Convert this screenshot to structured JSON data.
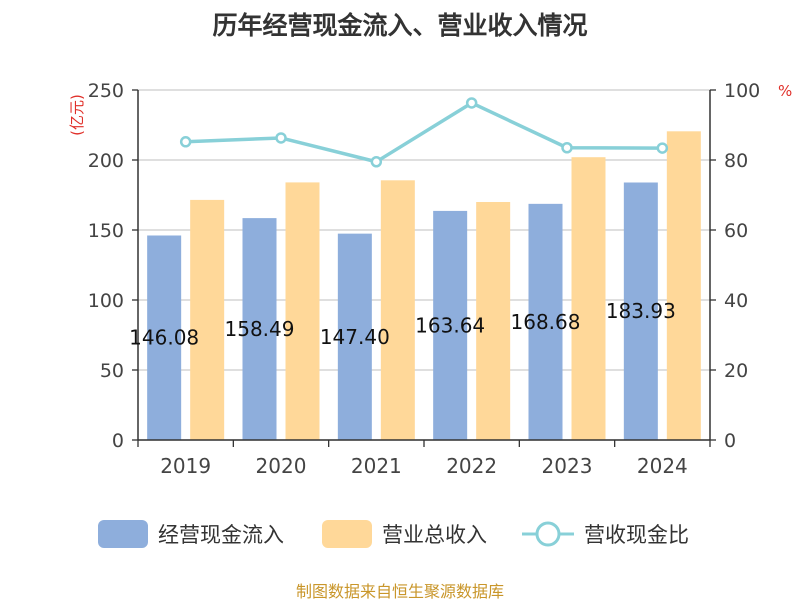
{
  "title": "历年经营现金流入、营业收入情况",
  "source": "制图数据来自恒生聚源数据库",
  "chart_data": {
    "type": "bar",
    "categories": [
      "2019",
      "2020",
      "2021",
      "2022",
      "2023",
      "2024"
    ],
    "left_unit": "(亿元)",
    "right_unit": "%",
    "ylim": [
      0,
      250
    ],
    "y_ticks": [
      0,
      50,
      100,
      150,
      200,
      250
    ],
    "y2lim": [
      0,
      100
    ],
    "y2_ticks": [
      0,
      20,
      40,
      60,
      80,
      100
    ],
    "grid": true,
    "legend_position": "bottom",
    "series": [
      {
        "name": "经营现金流入",
        "type": "bar",
        "color": "#8eaedc",
        "axis": "left",
        "values": [
          146.08,
          158.49,
          147.4,
          163.64,
          168.68,
          183.93
        ],
        "labels": [
          "146.08",
          "158.49",
          "147.40",
          "163.64",
          "168.68",
          "183.93"
        ]
      },
      {
        "name": "营业总收入",
        "type": "bar",
        "color": "#ffd899",
        "axis": "left",
        "values": [
          171.5,
          184.0,
          185.5,
          170.0,
          202.0,
          220.5
        ]
      },
      {
        "name": "营收现金比",
        "type": "line",
        "color": "#88d0d8",
        "axis": "right",
        "values": [
          85.2,
          86.3,
          79.5,
          96.3,
          83.5,
          83.4
        ]
      }
    ]
  }
}
